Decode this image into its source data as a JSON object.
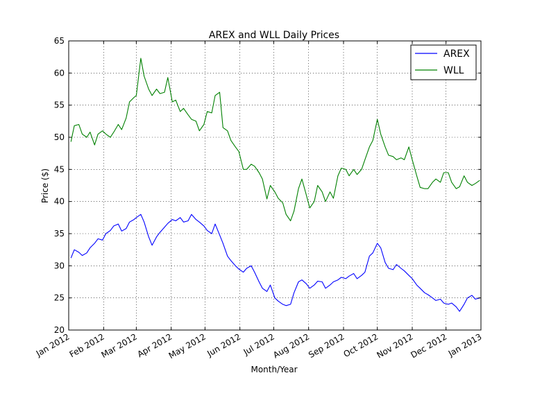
{
  "chart_data": {
    "type": "line",
    "title": "AREX and WLL Daily Prices",
    "xlabel": "Month/Year",
    "ylabel": "Price ($)",
    "x_range": [
      "2012-01-01",
      "2013-01-01"
    ],
    "ylim": [
      20,
      65
    ],
    "yticks": [
      20,
      25,
      30,
      35,
      40,
      45,
      50,
      55,
      60,
      65
    ],
    "xticks": [
      {
        "label": "Jan 2012",
        "date": "2012-01-01"
      },
      {
        "label": "Feb 2012",
        "date": "2012-02-01"
      },
      {
        "label": "Mar 2012",
        "date": "2012-03-01"
      },
      {
        "label": "Apr 2012",
        "date": "2012-04-01"
      },
      {
        "label": "May 2012",
        "date": "2012-05-01"
      },
      {
        "label": "Jun 2012",
        "date": "2012-06-01"
      },
      {
        "label": "Jul 2012",
        "date": "2012-07-01"
      },
      {
        "label": "Aug 2012",
        "date": "2012-08-01"
      },
      {
        "label": "Sep 2012",
        "date": "2012-09-01"
      },
      {
        "label": "Oct 2012",
        "date": "2012-10-01"
      },
      {
        "label": "Nov 2012",
        "date": "2012-11-01"
      },
      {
        "label": "Dec 2012",
        "date": "2012-12-01"
      },
      {
        "label": "Jan 2013",
        "date": "2013-01-01"
      }
    ],
    "grid": true,
    "legend_position": "top-right",
    "series": [
      {
        "name": "AREX",
        "color": "#0000ff",
        "points": [
          [
            "2012-01-03",
            31.2
          ],
          [
            "2012-01-06",
            32.5
          ],
          [
            "2012-01-10",
            32.1
          ],
          [
            "2012-01-13",
            31.6
          ],
          [
            "2012-01-17",
            32.0
          ],
          [
            "2012-01-20",
            32.8
          ],
          [
            "2012-01-24",
            33.5
          ],
          [
            "2012-01-27",
            34.2
          ],
          [
            "2012-01-31",
            34.0
          ],
          [
            "2012-02-03",
            35.0
          ],
          [
            "2012-02-07",
            35.5
          ],
          [
            "2012-02-10",
            36.2
          ],
          [
            "2012-02-14",
            36.5
          ],
          [
            "2012-02-17",
            35.4
          ],
          [
            "2012-02-21",
            35.8
          ],
          [
            "2012-02-24",
            36.8
          ],
          [
            "2012-02-28",
            37.2
          ],
          [
            "2012-03-01",
            37.5
          ],
          [
            "2012-03-05",
            38.0
          ],
          [
            "2012-03-08",
            36.8
          ],
          [
            "2012-03-12",
            34.5
          ],
          [
            "2012-03-15",
            33.2
          ],
          [
            "2012-03-19",
            34.5
          ],
          [
            "2012-03-22",
            35.2
          ],
          [
            "2012-03-26",
            36.0
          ],
          [
            "2012-03-29",
            36.6
          ],
          [
            "2012-04-02",
            37.2
          ],
          [
            "2012-04-05",
            37.0
          ],
          [
            "2012-04-09",
            37.5
          ],
          [
            "2012-04-12",
            36.8
          ],
          [
            "2012-04-16",
            37.0
          ],
          [
            "2012-04-19",
            38.0
          ],
          [
            "2012-04-23",
            37.2
          ],
          [
            "2012-04-26",
            36.8
          ],
          [
            "2012-04-30",
            36.2
          ],
          [
            "2012-05-03",
            35.5
          ],
          [
            "2012-05-07",
            35.0
          ],
          [
            "2012-05-10",
            36.5
          ],
          [
            "2012-05-14",
            34.8
          ],
          [
            "2012-05-17",
            33.5
          ],
          [
            "2012-05-21",
            31.5
          ],
          [
            "2012-05-24",
            30.8
          ],
          [
            "2012-05-28",
            30.0
          ],
          [
            "2012-05-31",
            29.5
          ],
          [
            "2012-06-04",
            29.0
          ],
          [
            "2012-06-07",
            29.6
          ],
          [
            "2012-06-11",
            30.0
          ],
          [
            "2012-06-14",
            29.0
          ],
          [
            "2012-06-18",
            27.5
          ],
          [
            "2012-06-21",
            26.5
          ],
          [
            "2012-06-25",
            26.0
          ],
          [
            "2012-06-28",
            27.0
          ],
          [
            "2012-07-02",
            25.0
          ],
          [
            "2012-07-05",
            24.5
          ],
          [
            "2012-07-09",
            24.0
          ],
          [
            "2012-07-12",
            23.8
          ],
          [
            "2012-07-16",
            24.0
          ],
          [
            "2012-07-19",
            25.8
          ],
          [
            "2012-07-23",
            27.5
          ],
          [
            "2012-07-26",
            27.8
          ],
          [
            "2012-07-30",
            27.2
          ],
          [
            "2012-08-02",
            26.5
          ],
          [
            "2012-08-06",
            27.0
          ],
          [
            "2012-08-09",
            27.6
          ],
          [
            "2012-08-13",
            27.5
          ],
          [
            "2012-08-16",
            26.5
          ],
          [
            "2012-08-20",
            27.0
          ],
          [
            "2012-08-23",
            27.5
          ],
          [
            "2012-08-27",
            27.8
          ],
          [
            "2012-08-30",
            28.2
          ],
          [
            "2012-09-03",
            28.0
          ],
          [
            "2012-09-06",
            28.4
          ],
          [
            "2012-09-10",
            28.8
          ],
          [
            "2012-09-13",
            28.0
          ],
          [
            "2012-09-17",
            28.5
          ],
          [
            "2012-09-20",
            29.0
          ],
          [
            "2012-09-24",
            31.5
          ],
          [
            "2012-09-27",
            32.0
          ],
          [
            "2012-10-01",
            33.5
          ],
          [
            "2012-10-04",
            32.8
          ],
          [
            "2012-10-08",
            30.5
          ],
          [
            "2012-10-11",
            29.6
          ],
          [
            "2012-10-15",
            29.4
          ],
          [
            "2012-10-18",
            30.2
          ],
          [
            "2012-10-22",
            29.6
          ],
          [
            "2012-10-25",
            29.2
          ],
          [
            "2012-10-29",
            28.5
          ],
          [
            "2012-11-01",
            28.0
          ],
          [
            "2012-11-05",
            27.0
          ],
          [
            "2012-11-08",
            26.5
          ],
          [
            "2012-11-12",
            25.8
          ],
          [
            "2012-11-15",
            25.5
          ],
          [
            "2012-11-19",
            25.0
          ],
          [
            "2012-11-22",
            24.6
          ],
          [
            "2012-11-26",
            24.8
          ],
          [
            "2012-11-29",
            24.2
          ],
          [
            "2012-12-03",
            24.0
          ],
          [
            "2012-12-06",
            24.2
          ],
          [
            "2012-12-10",
            23.6
          ],
          [
            "2012-12-13",
            22.9
          ],
          [
            "2012-12-17",
            24.0
          ],
          [
            "2012-12-20",
            25.0
          ],
          [
            "2012-12-24",
            25.4
          ],
          [
            "2012-12-27",
            24.8
          ],
          [
            "2012-12-31",
            25.0
          ]
        ]
      },
      {
        "name": "WLL",
        "color": "#008000",
        "points": [
          [
            "2012-01-03",
            49.3
          ],
          [
            "2012-01-06",
            51.8
          ],
          [
            "2012-01-10",
            52.0
          ],
          [
            "2012-01-13",
            50.5
          ],
          [
            "2012-01-17",
            50.0
          ],
          [
            "2012-01-20",
            50.8
          ],
          [
            "2012-01-24",
            48.8
          ],
          [
            "2012-01-27",
            50.5
          ],
          [
            "2012-01-31",
            51.0
          ],
          [
            "2012-02-03",
            50.5
          ],
          [
            "2012-02-07",
            50.0
          ],
          [
            "2012-02-10",
            50.8
          ],
          [
            "2012-02-14",
            52.0
          ],
          [
            "2012-02-17",
            51.2
          ],
          [
            "2012-02-21",
            53.0
          ],
          [
            "2012-02-24",
            55.5
          ],
          [
            "2012-02-28",
            56.2
          ],
          [
            "2012-03-01",
            56.5
          ],
          [
            "2012-03-05",
            62.3
          ],
          [
            "2012-03-08",
            59.5
          ],
          [
            "2012-03-12",
            57.5
          ],
          [
            "2012-03-15",
            56.5
          ],
          [
            "2012-03-19",
            57.5
          ],
          [
            "2012-03-22",
            56.8
          ],
          [
            "2012-03-26",
            57.0
          ],
          [
            "2012-03-29",
            59.3
          ],
          [
            "2012-04-02",
            55.5
          ],
          [
            "2012-04-05",
            55.8
          ],
          [
            "2012-04-09",
            54.0
          ],
          [
            "2012-04-12",
            54.5
          ],
          [
            "2012-04-16",
            53.5
          ],
          [
            "2012-04-19",
            52.8
          ],
          [
            "2012-04-23",
            52.5
          ],
          [
            "2012-04-26",
            51.0
          ],
          [
            "2012-04-30",
            52.0
          ],
          [
            "2012-05-03",
            54.0
          ],
          [
            "2012-05-07",
            53.8
          ],
          [
            "2012-05-10",
            56.5
          ],
          [
            "2012-05-14",
            57.0
          ],
          [
            "2012-05-17",
            51.5
          ],
          [
            "2012-05-21",
            51.0
          ],
          [
            "2012-05-24",
            49.5
          ],
          [
            "2012-05-28",
            48.5
          ],
          [
            "2012-05-31",
            47.8
          ],
          [
            "2012-06-04",
            45.0
          ],
          [
            "2012-06-07",
            45.0
          ],
          [
            "2012-06-11",
            45.8
          ],
          [
            "2012-06-14",
            45.5
          ],
          [
            "2012-06-18",
            44.5
          ],
          [
            "2012-06-21",
            43.5
          ],
          [
            "2012-06-25",
            40.4
          ],
          [
            "2012-06-28",
            42.5
          ],
          [
            "2012-07-02",
            41.5
          ],
          [
            "2012-07-05",
            40.5
          ],
          [
            "2012-07-09",
            39.8
          ],
          [
            "2012-07-12",
            38.0
          ],
          [
            "2012-07-16",
            37.0
          ],
          [
            "2012-07-19",
            38.5
          ],
          [
            "2012-07-23",
            42.0
          ],
          [
            "2012-07-26",
            43.5
          ],
          [
            "2012-07-30",
            41.0
          ],
          [
            "2012-08-02",
            39.0
          ],
          [
            "2012-08-06",
            40.0
          ],
          [
            "2012-08-09",
            42.5
          ],
          [
            "2012-08-13",
            41.5
          ],
          [
            "2012-08-16",
            40.0
          ],
          [
            "2012-08-20",
            41.5
          ],
          [
            "2012-08-23",
            40.5
          ],
          [
            "2012-08-27",
            44.0
          ],
          [
            "2012-08-30",
            45.2
          ],
          [
            "2012-09-03",
            45.0
          ],
          [
            "2012-09-06",
            44.0
          ],
          [
            "2012-09-10",
            45.0
          ],
          [
            "2012-09-13",
            44.2
          ],
          [
            "2012-09-17",
            45.0
          ],
          [
            "2012-09-20",
            46.5
          ],
          [
            "2012-09-24",
            48.5
          ],
          [
            "2012-09-27",
            49.5
          ],
          [
            "2012-10-01",
            52.8
          ],
          [
            "2012-10-04",
            50.5
          ],
          [
            "2012-10-08",
            48.5
          ],
          [
            "2012-10-11",
            47.2
          ],
          [
            "2012-10-15",
            47.0
          ],
          [
            "2012-10-18",
            46.5
          ],
          [
            "2012-10-22",
            46.8
          ],
          [
            "2012-10-25",
            46.5
          ],
          [
            "2012-10-29",
            48.5
          ],
          [
            "2012-11-01",
            46.5
          ],
          [
            "2012-11-05",
            44.0
          ],
          [
            "2012-11-08",
            42.2
          ],
          [
            "2012-11-12",
            42.0
          ],
          [
            "2012-11-15",
            42.0
          ],
          [
            "2012-11-19",
            43.0
          ],
          [
            "2012-11-22",
            43.5
          ],
          [
            "2012-11-26",
            43.0
          ],
          [
            "2012-11-29",
            44.5
          ],
          [
            "2012-12-03",
            44.5
          ],
          [
            "2012-12-06",
            43.0
          ],
          [
            "2012-12-10",
            42.0
          ],
          [
            "2012-12-13",
            42.3
          ],
          [
            "2012-12-17",
            44.0
          ],
          [
            "2012-12-20",
            43.0
          ],
          [
            "2012-12-24",
            42.5
          ],
          [
            "2012-12-27",
            42.8
          ],
          [
            "2012-12-31",
            43.3
          ]
        ]
      }
    ]
  }
}
